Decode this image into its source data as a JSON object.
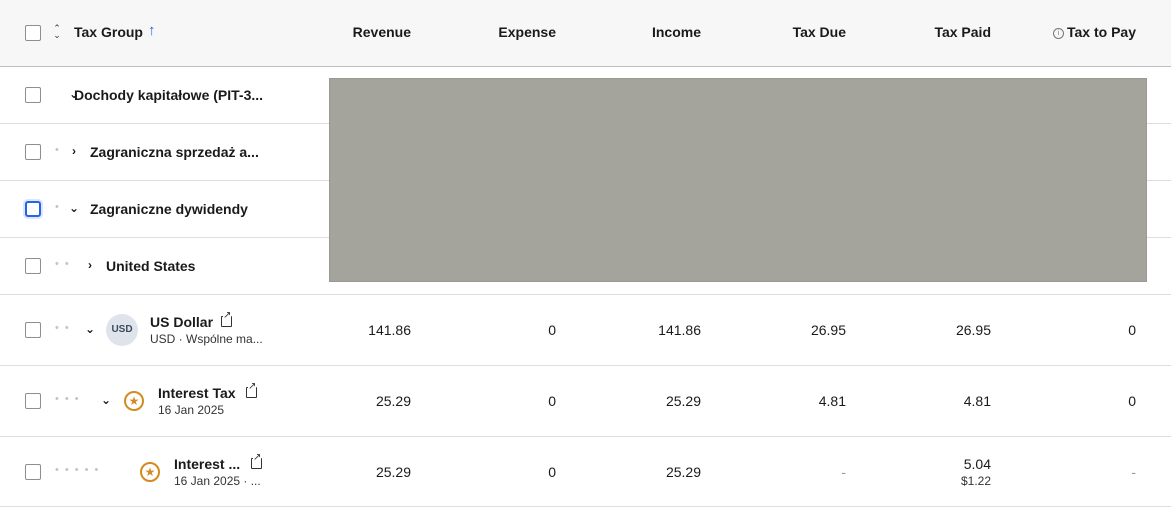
{
  "header": {
    "tax_group": "Tax Group",
    "sort_toggle_glyph": "⌃⌄",
    "sort_arrow_glyph": "↑",
    "revenue": "Revenue",
    "expense": "Expense",
    "income": "Income",
    "tax_due": "Tax Due",
    "tax_paid": "Tax Paid",
    "tax_to_pay": "Tax to Pay",
    "info_glyph": "i"
  },
  "glyphs": {
    "chevron_down": "⌄",
    "chevron_right": "›",
    "star": "★",
    "dot": "•"
  },
  "groups": [
    {
      "label": "Dochody kapitałowe (PIT-3...",
      "expanded": true
    },
    {
      "label": "Zagraniczna sprzedaż a...",
      "expanded": false
    },
    {
      "label": "Zagraniczne dywidendy",
      "expanded": true
    },
    {
      "label": "United States",
      "expanded": false
    }
  ],
  "items": [
    {
      "icon": "USD",
      "title": "US Dollar",
      "subtitle": "USD · Wspólne ma...",
      "revenue": "141.86",
      "expense": "0",
      "income": "141.86",
      "tax_due": "26.95",
      "tax_paid": "26.95",
      "tax_to_pay": "0"
    },
    {
      "icon": "star-icon",
      "title": "Interest Tax",
      "subtitle": "16 Jan 2025",
      "revenue": "25.29",
      "expense": "0",
      "income": "25.29",
      "tax_due": "4.81",
      "tax_paid": "4.81",
      "tax_to_pay": "0"
    },
    {
      "icon": "star-icon",
      "title": "Interest ...",
      "subtitle": "16 Jan 2025 · ...",
      "revenue": "25.29",
      "expense": "0",
      "income": "25.29",
      "tax_due": "-",
      "tax_paid": "5.04",
      "tax_paid_sub": "$1.22",
      "tax_to_pay": "-"
    }
  ],
  "colors": {
    "accent": "#2563eb",
    "star": "#d58a1e",
    "redaction": "#a4a49c"
  }
}
